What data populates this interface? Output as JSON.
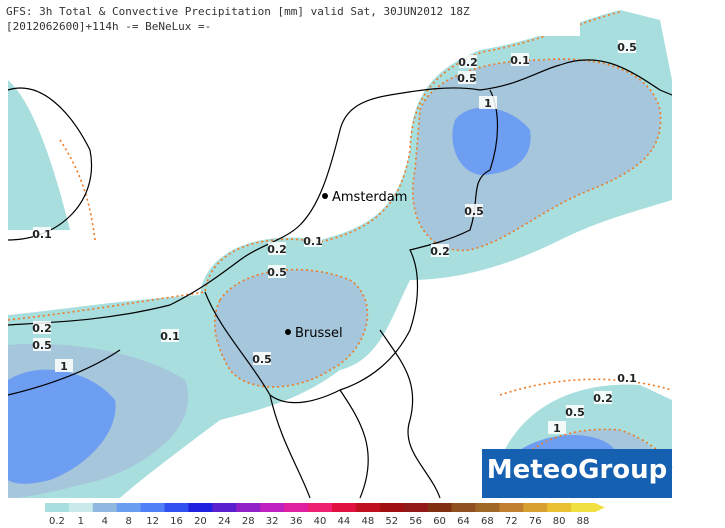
{
  "header": {
    "title": "GFS: 3h Total & Convective Precipitation [mm] valid Sat, 30JUN2012 18Z",
    "subtitle": "[2012062600]+114h -= BeNeLux =-"
  },
  "cities": [
    "Amsterdam",
    "Brussel"
  ],
  "contour_labels": [
    "0.1",
    "0.5",
    "0.2",
    "0.5",
    "1",
    "0.5",
    "0.1",
    "0.1",
    "0.2",
    "0.2",
    "0.5",
    "0.2",
    "0.1",
    "0.5",
    "1",
    "0.5",
    "0.1",
    "0.2",
    "0.5",
    "1"
  ],
  "legend": {
    "labels": [
      "0.2",
      "1",
      "4",
      "8",
      "12",
      "16",
      "20",
      "24",
      "28",
      "32",
      "36",
      "40",
      "44",
      "48",
      "52",
      "56",
      "60",
      "64",
      "68",
      "72",
      "76",
      "80",
      "88"
    ],
    "colors": [
      "#a8dede",
      "#c8eaea",
      "#8fb8e0",
      "#6a9ef0",
      "#5080f8",
      "#3050f0",
      "#2020e0",
      "#5a20d0",
      "#9020c8",
      "#c020c0",
      "#e020a0",
      "#f02070",
      "#e01040",
      "#c01020",
      "#a01010",
      "#901818",
      "#803010",
      "#905020",
      "#a06828",
      "#c08030",
      "#d8a030",
      "#e8c030",
      "#f0e040"
    ]
  },
  "logo": "MeteoGroup"
}
